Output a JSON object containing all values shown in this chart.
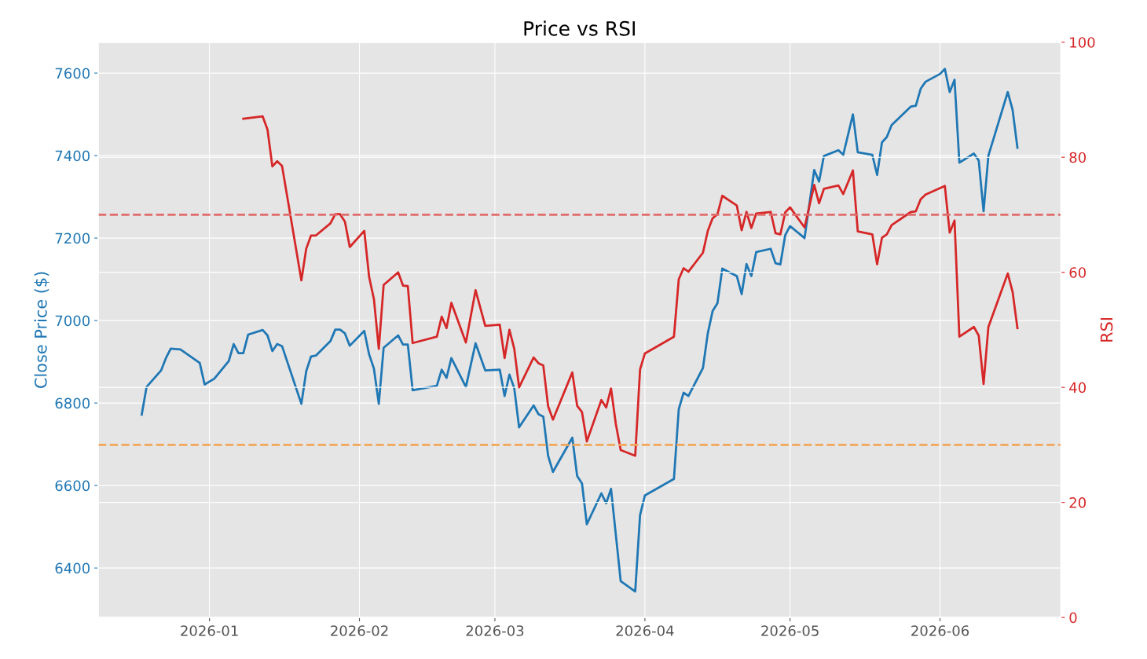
{
  "chart_data": {
    "type": "line",
    "title": "Price vs RSI",
    "ylabel": "Close Price ($)",
    "y2label": "RSI",
    "xlim": [
      "2025-12-09",
      "2026-06-26"
    ],
    "xticks": [
      {
        "value": "2026-01-01",
        "label": "2026-01"
      },
      {
        "value": "2026-02-01",
        "label": "2026-02"
      },
      {
        "value": "2026-03-01",
        "label": "2026-03"
      },
      {
        "value": "2026-04-01",
        "label": "2026-04"
      },
      {
        "value": "2026-05-01",
        "label": "2026-05"
      },
      {
        "value": "2026-06-01",
        "label": "2026-06"
      }
    ],
    "ylim": [
      6280,
      7675
    ],
    "yticks": [
      6400,
      6600,
      6800,
      7000,
      7200,
      7400,
      7600
    ],
    "y2lim": [
      0,
      100
    ],
    "y2ticks": [
      0,
      20,
      40,
      60,
      80,
      100
    ],
    "grid": true,
    "line_style": "solid",
    "series": [
      {
        "color": "#1f77b4",
        "x": [
          "2025-12-18",
          "2025-12-19",
          "2025-12-22",
          "2025-12-23",
          "2025-12-24",
          "2025-12-26",
          "2025-12-30",
          "2025-12-31",
          "2026-01-02",
          "2026-01-05",
          "2026-01-06",
          "2026-01-07",
          "2026-01-08",
          "2026-01-09",
          "2026-01-12",
          "2026-01-13",
          "2026-01-14",
          "2026-01-15",
          "2026-01-16",
          "2026-01-20",
          "2026-01-21",
          "2026-01-22",
          "2026-01-23",
          "2026-01-26",
          "2026-01-27",
          "2026-01-28",
          "2026-01-29",
          "2026-01-30",
          "2026-02-02",
          "2026-02-03",
          "2026-02-04",
          "2026-02-05",
          "2026-02-06",
          "2026-02-09",
          "2026-02-10",
          "2026-02-11",
          "2026-02-12",
          "2026-02-17",
          "2026-02-18",
          "2026-02-19",
          "2026-02-20",
          "2026-02-23",
          "2026-02-25",
          "2026-02-27",
          "2026-03-02",
          "2026-03-03",
          "2026-03-04",
          "2026-03-05",
          "2026-03-06",
          "2026-03-09",
          "2026-03-10",
          "2026-03-11",
          "2026-03-12",
          "2026-03-13",
          "2026-03-17",
          "2026-03-18",
          "2026-03-19",
          "2026-03-20",
          "2026-03-23",
          "2026-03-24",
          "2026-03-25",
          "2026-03-26",
          "2026-03-27",
          "2026-03-30",
          "2026-03-31",
          "2026-04-01",
          "2026-04-07",
          "2026-04-08",
          "2026-04-09",
          "2026-04-10",
          "2026-04-13",
          "2026-04-14",
          "2026-04-15",
          "2026-04-16",
          "2026-04-17",
          "2026-04-20",
          "2026-04-21",
          "2026-04-22",
          "2026-04-23",
          "2026-04-24",
          "2026-04-27",
          "2026-04-28",
          "2026-04-29",
          "2026-04-30",
          "2026-05-01",
          "2026-05-04",
          "2026-05-06",
          "2026-05-07",
          "2026-05-08",
          "2026-05-11",
          "2026-05-12",
          "2026-05-14",
          "2026-05-15",
          "2026-05-18",
          "2026-05-19",
          "2026-05-20",
          "2026-05-21",
          "2026-05-22",
          "2026-05-26",
          "2026-05-27",
          "2026-05-28",
          "2026-05-29",
          "2026-06-01",
          "2026-06-02",
          "2026-06-03",
          "2026-06-04",
          "2026-06-05",
          "2026-06-08",
          "2026-06-09",
          "2026-06-10",
          "2026-06-11",
          "2026-06-15",
          "2026-06-16",
          "2026-06-17"
        ],
        "values": [
          6772,
          6839,
          6879,
          6909,
          6932,
          6930,
          6897,
          6845,
          6859,
          6902,
          6943,
          6921,
          6921,
          6966,
          6977,
          6964,
          6926,
          6943,
          6938,
          6798,
          6877,
          6913,
          6915,
          6950,
          6978,
          6978,
          6969,
          6939,
          6975,
          6918,
          6883,
          6798,
          6934,
          6964,
          6942,
          6942,
          6831,
          6842,
          6881,
          6861,
          6909,
          6839,
          6945,
          6879,
          6881,
          6817,
          6869,
          6836,
          6741,
          6794,
          6773,
          6767,
          6672,
          6633,
          6716,
          6623,
          6605,
          6506,
          6581,
          6557,
          6592,
          6480,
          6368,
          6343,
          6528,
          6576,
          6616,
          6785,
          6825,
          6817,
          6885,
          6969,
          7023,
          7042,
          7126,
          7108,
          7064,
          7137,
          7108,
          7166,
          7174,
          7139,
          7136,
          7207,
          7229,
          7200,
          7365,
          7337,
          7399,
          7413,
          7402,
          7500,
          7408,
          7402,
          7353,
          7432,
          7445,
          7474,
          7519,
          7521,
          7562,
          7579,
          7598,
          7610,
          7554,
          7584,
          7383,
          7405,
          7388,
          7265,
          7400,
          7554,
          7511,
          7419
        ]
      },
      {
        "color": "#d62728",
        "axis": "y2",
        "x": [
          "2026-01-08",
          "2026-01-12",
          "2026-01-13",
          "2026-01-14",
          "2026-01-15",
          "2026-01-16",
          "2026-01-20",
          "2026-01-21",
          "2026-01-22",
          "2026-01-23",
          "2026-01-26",
          "2026-01-27",
          "2026-01-28",
          "2026-01-29",
          "2026-01-30",
          "2026-02-02",
          "2026-02-03",
          "2026-02-04",
          "2026-02-05",
          "2026-02-06",
          "2026-02-09",
          "2026-02-10",
          "2026-02-11",
          "2026-02-12",
          "2026-02-17",
          "2026-02-18",
          "2026-02-19",
          "2026-02-20",
          "2026-02-23",
          "2026-02-25",
          "2026-02-27",
          "2026-03-02",
          "2026-03-03",
          "2026-03-04",
          "2026-03-05",
          "2026-03-06",
          "2026-03-09",
          "2026-03-10",
          "2026-03-11",
          "2026-03-12",
          "2026-03-13",
          "2026-03-17",
          "2026-03-18",
          "2026-03-19",
          "2026-03-20",
          "2026-03-23",
          "2026-03-24",
          "2026-03-25",
          "2026-03-26",
          "2026-03-27",
          "2026-03-30",
          "2026-03-31",
          "2026-04-01",
          "2026-04-07",
          "2026-04-08",
          "2026-04-09",
          "2026-04-10",
          "2026-04-13",
          "2026-04-14",
          "2026-04-15",
          "2026-04-16",
          "2026-04-17",
          "2026-04-20",
          "2026-04-21",
          "2026-04-22",
          "2026-04-23",
          "2026-04-24",
          "2026-04-27",
          "2026-04-28",
          "2026-04-29",
          "2026-04-30",
          "2026-05-01",
          "2026-05-04",
          "2026-05-06",
          "2026-05-07",
          "2026-05-08",
          "2026-05-11",
          "2026-05-12",
          "2026-05-14",
          "2026-05-15",
          "2026-05-18",
          "2026-05-19",
          "2026-05-20",
          "2026-05-21",
          "2026-05-22",
          "2026-05-26",
          "2026-05-27",
          "2026-05-28",
          "2026-05-29",
          "2026-06-02",
          "2026-06-03",
          "2026-06-04",
          "2026-06-05",
          "2026-06-08",
          "2026-06-09",
          "2026-06-10",
          "2026-06-11",
          "2026-06-15",
          "2026-06-16",
          "2026-06-17"
        ],
        "values": [
          86.7,
          87.1,
          84.8,
          78.4,
          79.3,
          78.5,
          58.6,
          64.1,
          66.4,
          66.4,
          68.5,
          70.1,
          70.1,
          68.8,
          64.4,
          67.2,
          59.2,
          55.3,
          46.7,
          57.8,
          60.0,
          57.7,
          57.6,
          47.7,
          48.8,
          52.3,
          50.3,
          54.7,
          47.8,
          56.9,
          50.7,
          50.9,
          45.1,
          50.0,
          46.7,
          40.0,
          45.2,
          44.2,
          43.8,
          36.7,
          34.4,
          42.6,
          36.8,
          35.7,
          30.6,
          37.8,
          36.5,
          39.8,
          33.6,
          29.1,
          28.1,
          43.1,
          45.9,
          48.8,
          58.8,
          60.7,
          60.1,
          63.4,
          67.2,
          69.4,
          70.1,
          73.3,
          71.6,
          67.3,
          70.5,
          67.7,
          70.2,
          70.5,
          66.8,
          66.6,
          70.4,
          71.3,
          67.8,
          75.2,
          72.0,
          74.5,
          75.1,
          73.6,
          77.7,
          67.1,
          66.6,
          61.4,
          66.0,
          66.6,
          68.2,
          70.5,
          70.6,
          72.7,
          73.5,
          75.0,
          66.9,
          69.0,
          48.8,
          50.5,
          49.0,
          40.6,
          50.5,
          59.8,
          56.6,
          50.3
        ]
      }
    ],
    "ref_lines": [
      {
        "axis": "y2",
        "value": 70,
        "color": "#e06c6c",
        "line_style": "dashed"
      },
      {
        "axis": "y2",
        "value": 30,
        "color": "#f2a65a",
        "line_style": "dashed"
      }
    ]
  }
}
